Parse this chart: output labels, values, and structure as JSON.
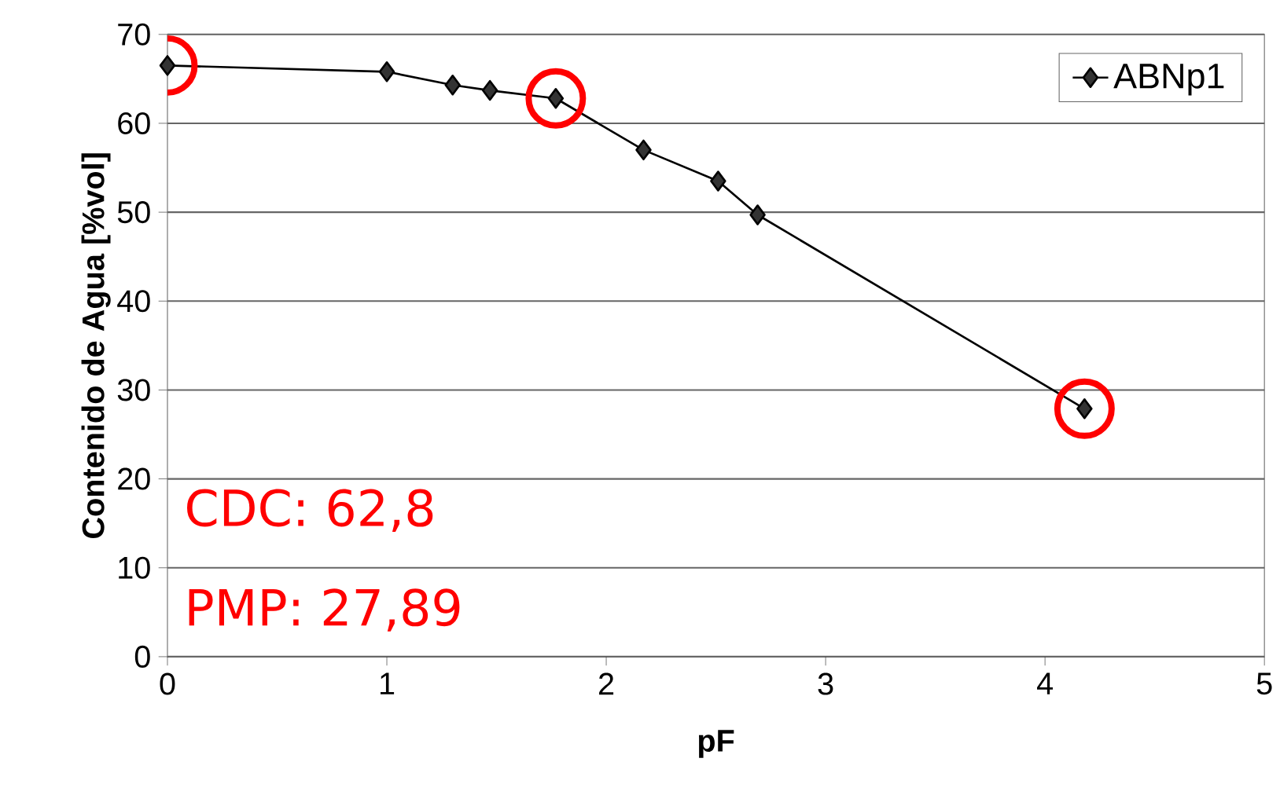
{
  "chart_data": {
    "type": "line",
    "xlabel": "pF",
    "ylabel": "Contenido de Agua [%vol]",
    "x": [
      0,
      1.0,
      1.3,
      1.47,
      1.77,
      2.17,
      2.51,
      2.69,
      4.18
    ],
    "series": [
      {
        "name": "ABNp1",
        "color": "#000000",
        "values": [
          66.5,
          65.8,
          64.3,
          63.7,
          62.8,
          57.0,
          53.5,
          49.7,
          27.89
        ]
      }
    ],
    "xlim": [
      0,
      5
    ],
    "ylim": [
      0,
      70
    ],
    "xticks": [
      0,
      1,
      2,
      3,
      4,
      5
    ],
    "yticks": [
      0,
      10,
      20,
      30,
      40,
      50,
      60,
      70
    ],
    "grid": "y",
    "legend": "top right",
    "marker": "diamond",
    "line_style": "solid",
    "annotations": [
      "CDC: 62,8",
      "PMP: 27,89"
    ]
  }
}
